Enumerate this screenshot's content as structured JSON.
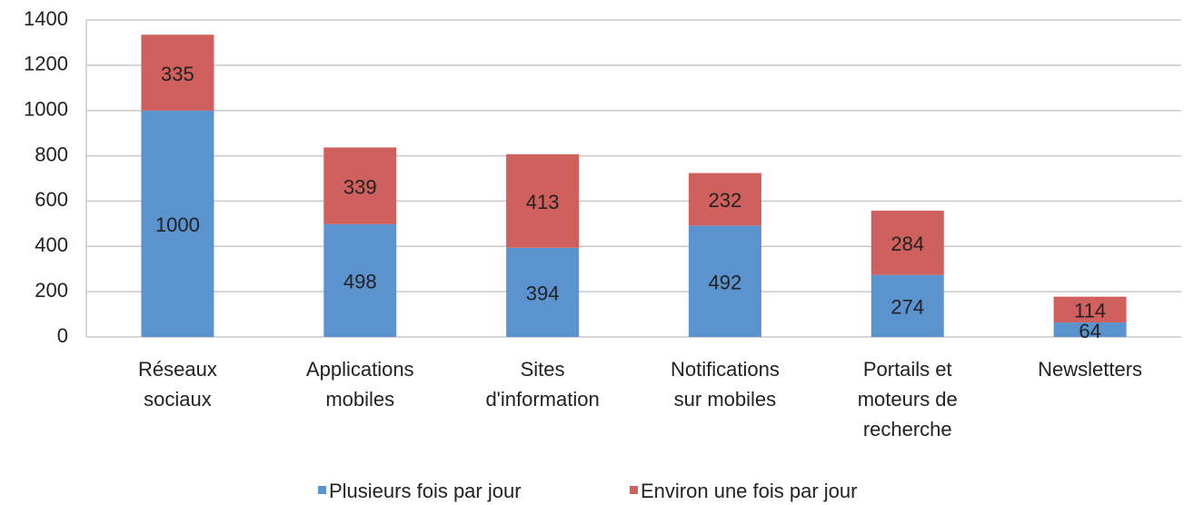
{
  "chart_data": {
    "type": "stacked_bar",
    "categories": [
      [
        "Réseaux",
        "sociaux"
      ],
      [
        "Applications",
        "mobiles"
      ],
      [
        "Sites",
        "d'information"
      ],
      [
        "Notifications",
        "sur mobiles"
      ],
      [
        "Portails et",
        "moteurs de",
        "recherche"
      ],
      [
        "Newsletters"
      ]
    ],
    "series": [
      {
        "name": "Plusieurs fois par jour",
        "color": "#5b93cf",
        "values": [
          1000,
          498,
          394,
          492,
          274,
          64
        ]
      },
      {
        "name": "Environ une fois par jour",
        "color": "#d0605d",
        "values": [
          335,
          339,
          413,
          232,
          284,
          114
        ]
      }
    ],
    "ylim": [
      0,
      1400
    ],
    "yticks": [
      0,
      200,
      400,
      600,
      800,
      1000,
      1200,
      1400
    ],
    "grid": true,
    "legend": "bottom"
  }
}
